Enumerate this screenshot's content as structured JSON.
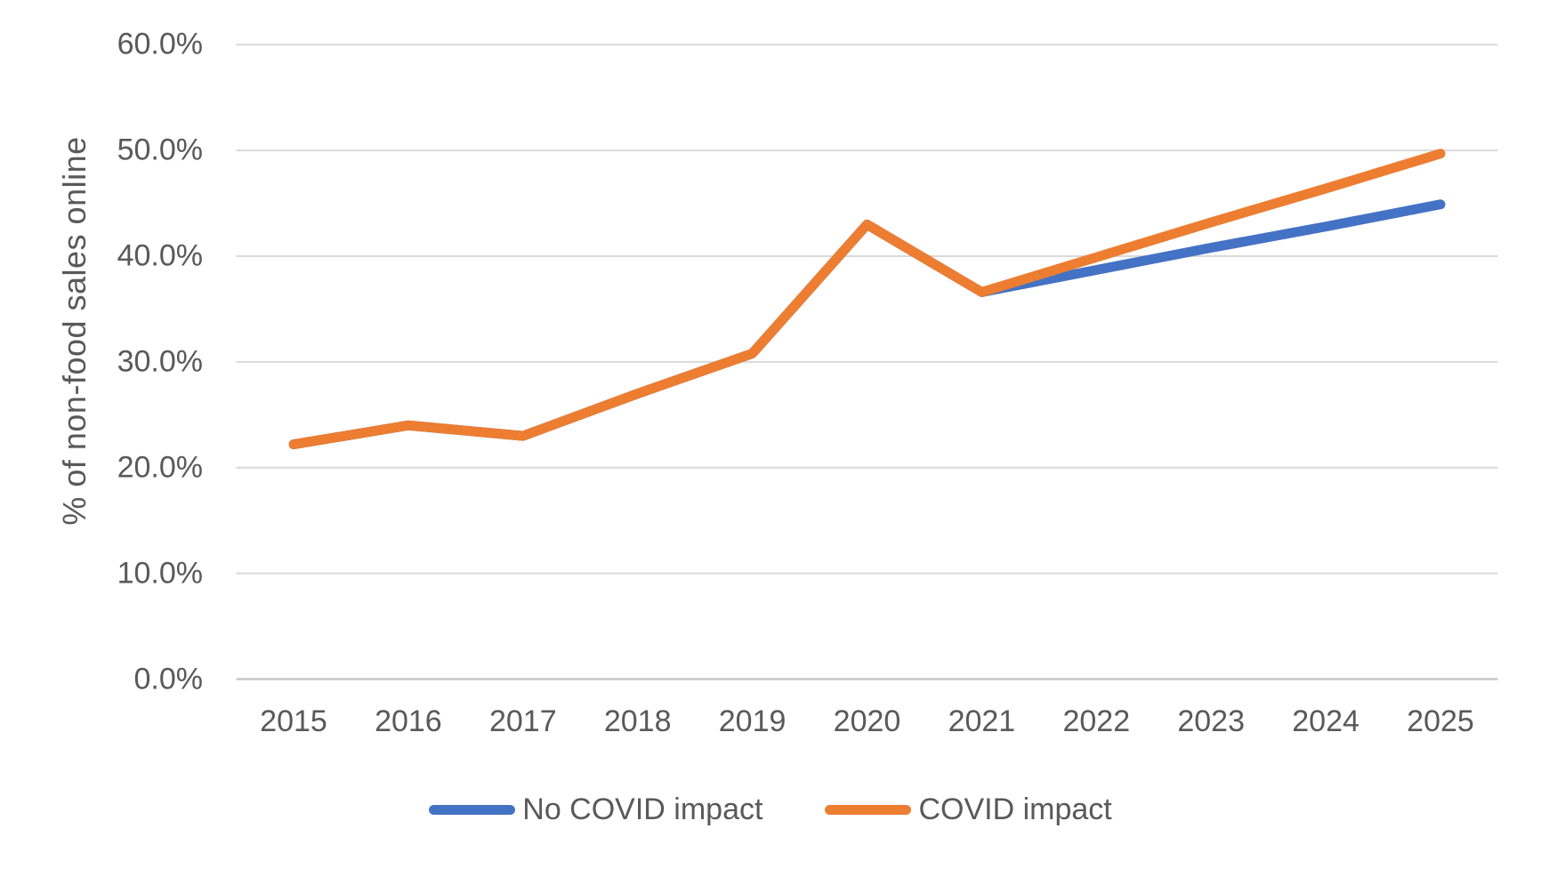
{
  "chart_data": {
    "type": "line",
    "title": "",
    "xlabel": "",
    "ylabel": "% of non-food sales online",
    "x": [
      "2015",
      "2016",
      "2017",
      "2018",
      "2019",
      "2020",
      "2021",
      "2022",
      "2023",
      "2024",
      "2025"
    ],
    "ylim": [
      0,
      60
    ],
    "ytick_step": 10,
    "ytick_labels": [
      "0.0%",
      "10.0%",
      "20.0%",
      "30.0%",
      "40.0%",
      "50.0%",
      "60.0%"
    ],
    "grid": true,
    "legend_position": "bottom",
    "series": [
      {
        "name": "No COVID impact",
        "color": "#4472C4",
        "values": [
          22.2,
          24.0,
          23.0,
          27.0,
          30.8,
          43.0,
          36.6,
          38.7,
          40.8,
          42.8,
          44.9
        ]
      },
      {
        "name": "COVID impact",
        "color": "#ED7D31",
        "values": [
          22.2,
          24.0,
          23.0,
          27.0,
          30.8,
          43.0,
          36.6,
          39.9,
          43.2,
          46.4,
          49.7
        ]
      }
    ],
    "colors": {
      "gridline": "#D9D9D9",
      "axis_line": "#C9C9C9",
      "text": "#595959",
      "background": "#FFFFFF"
    }
  }
}
